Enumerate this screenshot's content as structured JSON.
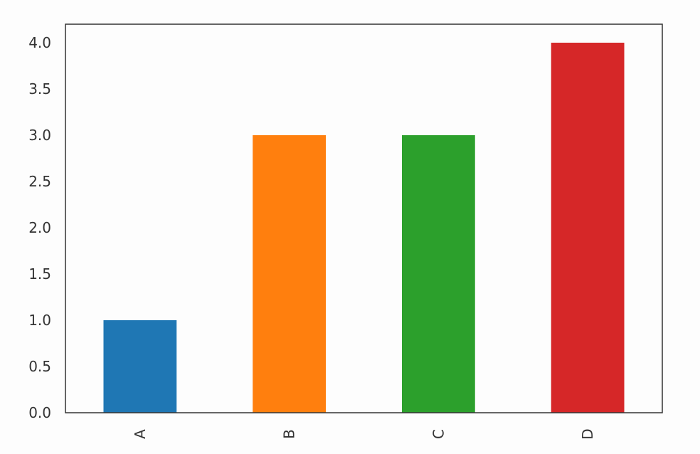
{
  "chart_data": {
    "type": "bar",
    "categories": [
      "A",
      "B",
      "C",
      "D"
    ],
    "values": [
      1,
      3,
      3,
      4
    ],
    "colors": [
      "#1f77b4",
      "#ff7f0e",
      "#2ca02c",
      "#d62728"
    ],
    "yticks": [
      "0.0",
      "0.5",
      "1.0",
      "1.5",
      "2.0",
      "2.5",
      "3.0",
      "3.5",
      "4.0"
    ],
    "ylim": [
      0,
      4.2
    ],
    "grid": false,
    "legend": "none",
    "xtick_rotation": "vertical"
  }
}
